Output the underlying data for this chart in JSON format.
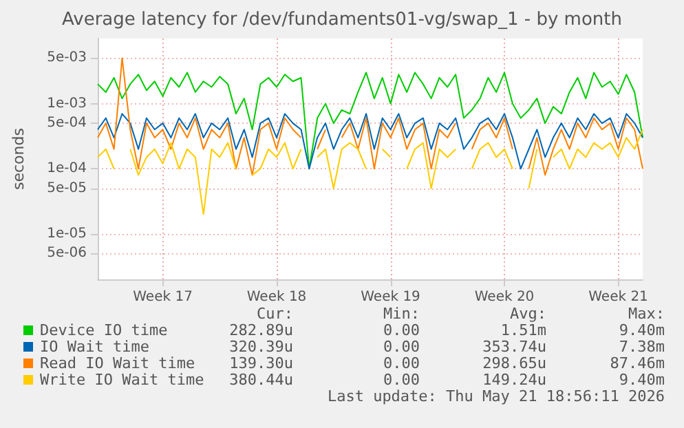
{
  "chart_data": {
    "type": "line",
    "title": "Average latency for /dev/fundaments01-vg/swap_1 - by month",
    "ylabel": "seconds",
    "log": true,
    "grid": true,
    "legend": "bottom",
    "categories": [
      null,
      null,
      null,
      null,
      null,
      null,
      null,
      null,
      "Week 17",
      null,
      null,
      null,
      null,
      null,
      null,
      null,
      null,
      null,
      null,
      null,
      null,
      null,
      "Week 18",
      null,
      null,
      null,
      null,
      null,
      null,
      null,
      null,
      null,
      null,
      null,
      null,
      null,
      "Week 19",
      null,
      null,
      null,
      null,
      null,
      null,
      null,
      null,
      null,
      null,
      null,
      null,
      null,
      "Week 20",
      null,
      null,
      null,
      null,
      null,
      null,
      null,
      null,
      null,
      null,
      null,
      null,
      null,
      "Week 21",
      null,
      null,
      null
    ],
    "ylim": [
      2e-06,
      0.01
    ],
    "yticks": [
      {
        "value": 0.005,
        "label": "5e-03"
      },
      {
        "value": 0.001,
        "label": "1e-03"
      },
      {
        "value": 0.0005,
        "label": "5e-04"
      },
      {
        "value": 0.0001,
        "label": "1e-04"
      },
      {
        "value": 5e-05,
        "label": "5e-05"
      },
      {
        "value": 1e-05,
        "label": "1e-05"
      },
      {
        "value": 5e-06,
        "label": "5e-06"
      }
    ],
    "series": [
      {
        "name": "Device IO time",
        "color": "#00cc00",
        "values": [
          0.002,
          0.0015,
          0.0025,
          0.0012,
          0.002,
          0.0028,
          0.0016,
          0.0022,
          0.0013,
          0.0025,
          0.0018,
          0.003,
          0.0015,
          0.0022,
          0.0018,
          0.0026,
          0.002,
          0.0007,
          0.0012,
          0.0004,
          0.002,
          0.0025,
          0.0018,
          0.0028,
          0.0022,
          0.0025,
          0.0001,
          0.0006,
          0.001,
          0.0005,
          0.0008,
          0.0007,
          0.0015,
          0.003,
          0.0012,
          0.0025,
          0.001,
          0.0028,
          0.0015,
          0.003,
          0.002,
          0.0012,
          0.0025,
          0.0018,
          0.0028,
          0.0006,
          0.0008,
          0.0012,
          0.0025,
          0.0015,
          0.003,
          0.001,
          0.0006,
          0.0008,
          0.0012,
          0.0005,
          0.0009,
          0.0007,
          0.0015,
          0.0025,
          0.0012,
          0.003,
          0.0018,
          0.0022,
          0.0014,
          0.0028,
          0.0015,
          0.0003
        ]
      },
      {
        "name": "IO Wait time",
        "color": "#0066b3",
        "values": [
          0.0004,
          0.0006,
          0.0003,
          0.0007,
          0.0005,
          0.0002,
          0.0006,
          0.0004,
          0.0005,
          0.0003,
          0.0006,
          0.0004,
          0.0007,
          0.0003,
          0.0005,
          0.0004,
          0.0006,
          0.0002,
          0.0004,
          0.00015,
          0.0005,
          0.0006,
          0.0003,
          0.0007,
          0.0005,
          0.0004,
          0.0001,
          0.0003,
          0.0005,
          0.0002,
          0.0004,
          0.0006,
          0.0003,
          0.0007,
          0.0002,
          0.0006,
          0.0004,
          0.0007,
          0.0003,
          0.0005,
          0.0006,
          0.0002,
          0.0005,
          0.0004,
          0.0006,
          0.0002,
          0.0003,
          0.0005,
          0.0006,
          0.0004,
          0.0007,
          0.0003,
          0.0001,
          0.0002,
          0.0004,
          0.00015,
          0.0003,
          0.0005,
          0.0003,
          0.0006,
          0.0004,
          0.0007,
          0.0005,
          0.0006,
          0.0003,
          0.0007,
          0.0005,
          0.0003
        ]
      },
      {
        "name": "Read IO Wait time",
        "color": "#ff8000",
        "values": [
          0.0003,
          0.0005,
          0.0002,
          0.005,
          0.0004,
          0.0001,
          0.0005,
          0.0003,
          0.0004,
          0.0002,
          0.0005,
          0.0003,
          0.0006,
          0.0002,
          0.0004,
          0.0003,
          0.0005,
          0.0001,
          0.0003,
          8e-05,
          0.0004,
          0.0005,
          0.0002,
          0.0006,
          0.0004,
          0.0003,
          null,
          0.0002,
          0.0004,
          null,
          0.0003,
          0.0005,
          0.0002,
          0.0006,
          0.0001,
          0.0005,
          0.0003,
          0.0006,
          0.0002,
          0.0004,
          0.0005,
          0.0001,
          0.0004,
          0.0003,
          0.0005,
          null,
          0.0002,
          0.0004,
          0.0005,
          0.0003,
          0.0006,
          0.0002,
          null,
          0.0001,
          0.0003,
          8e-05,
          0.0002,
          0.0004,
          0.0002,
          0.0005,
          0.0003,
          0.0006,
          0.0004,
          0.0005,
          0.0002,
          0.0006,
          0.0004,
          0.0001
        ]
      },
      {
        "name": "Write IO Wait time",
        "color": "#ffcc00",
        "values": [
          0.00015,
          0.0002,
          0.0001,
          null,
          0.0002,
          8e-05,
          0.00015,
          0.0002,
          0.00012,
          0.00025,
          0.0001,
          0.0002,
          0.00015,
          2e-05,
          0.0002,
          0.00015,
          0.00025,
          0.0001,
          null,
          8e-05,
          0.0001,
          0.0002,
          0.00015,
          0.00025,
          0.0001,
          0.0002,
          null,
          0.00015,
          0.0002,
          5e-05,
          0.0002,
          0.00025,
          0.0002,
          0.0001,
          null,
          0.0002,
          0.00015,
          null,
          0.0001,
          0.0002,
          0.00025,
          5e-05,
          0.0002,
          0.00015,
          0.0002,
          null,
          0.0001,
          0.0002,
          0.00025,
          0.00015,
          0.0002,
          0.0001,
          null,
          5e-05,
          0.0002,
          null,
          0.00015,
          0.0002,
          0.0001,
          0.0002,
          0.00015,
          0.00025,
          0.0002,
          0.00025,
          0.00015,
          0.0003,
          0.0002,
          0.0004
        ]
      }
    ],
    "annotations": [
      "Cur:",
      "Min:",
      "Avg:",
      "Max:",
      "282.89u",
      "0.00",
      "1.51m",
      "9.40m",
      "320.39u",
      "0.00",
      "353.74u",
      "7.38m",
      "139.30u",
      "0.00",
      "298.65u",
      "87.46m",
      "380.44u",
      "0.00",
      "149.24u",
      "9.40m",
      "Last update: Thu May 21 18:56:11 2026"
    ]
  }
}
